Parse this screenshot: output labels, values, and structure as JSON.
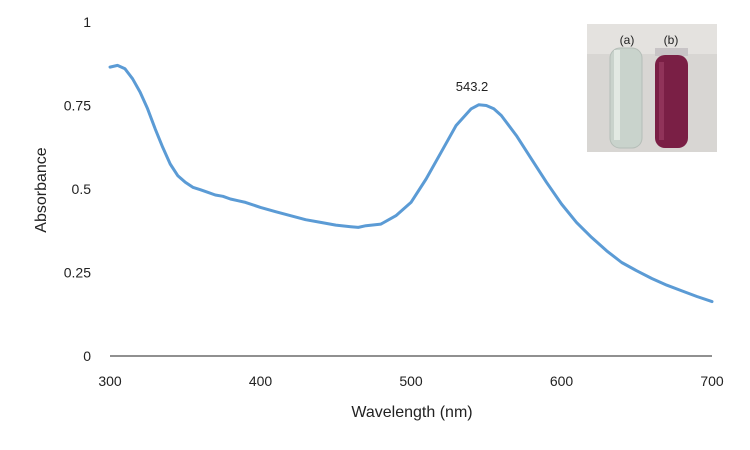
{
  "chart_data": {
    "type": "line",
    "xlabel": "Wavelength (nm)",
    "ylabel": "Absorbance",
    "xlim": [
      300,
      700
    ],
    "ylim": [
      0,
      1
    ],
    "x_ticks": [
      "300",
      "400",
      "500",
      "600",
      "700"
    ],
    "y_ticks": [
      "0",
      "0.25",
      "0.5",
      "0.75",
      "1"
    ],
    "grid": false,
    "line_color": "#5b9bd5",
    "series": [
      {
        "x": [
          300,
          305,
          310,
          315,
          320,
          325,
          330,
          335,
          340,
          345,
          350,
          355,
          360,
          365,
          370,
          375,
          380,
          385,
          390,
          400,
          410,
          420,
          430,
          440,
          450,
          460,
          465,
          470,
          480,
          490,
          500,
          510,
          520,
          530,
          540,
          545,
          550,
          555,
          560,
          570,
          580,
          590,
          600,
          610,
          620,
          630,
          640,
          650,
          660,
          670,
          680,
          690,
          700
        ],
        "y": [
          0.865,
          0.87,
          0.86,
          0.83,
          0.79,
          0.74,
          0.68,
          0.625,
          0.575,
          0.54,
          0.52,
          0.505,
          0.498,
          0.49,
          0.482,
          0.478,
          0.47,
          0.465,
          0.46,
          0.445,
          0.432,
          0.42,
          0.408,
          0.4,
          0.392,
          0.387,
          0.385,
          0.39,
          0.395,
          0.42,
          0.46,
          0.53,
          0.61,
          0.69,
          0.74,
          0.752,
          0.75,
          0.74,
          0.72,
          0.66,
          0.59,
          0.52,
          0.455,
          0.4,
          0.355,
          0.315,
          0.28,
          0.255,
          0.232,
          0.212,
          0.195,
          0.178,
          0.163
        ]
      }
    ],
    "annotations": [
      {
        "text": "543.2",
        "x": 543.2,
        "y": 0.752
      }
    ],
    "inset": {
      "labels": [
        "(a)",
        "(b)"
      ],
      "tube_a_color": "#c9d3cc",
      "tube_b_color": "#7a1f45"
    }
  }
}
